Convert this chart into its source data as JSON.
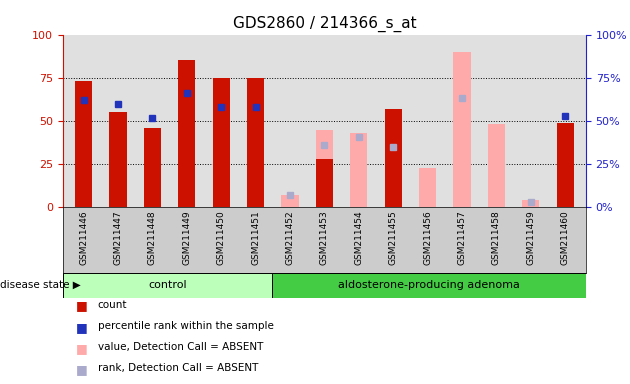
{
  "title": "GDS2860 / 214366_s_at",
  "samples": [
    "GSM211446",
    "GSM211447",
    "GSM211448",
    "GSM211449",
    "GSM211450",
    "GSM211451",
    "GSM211452",
    "GSM211453",
    "GSM211454",
    "GSM211455",
    "GSM211456",
    "GSM211457",
    "GSM211458",
    "GSM211459",
    "GSM211460"
  ],
  "red_bars": [
    73,
    55,
    46,
    85,
    75,
    75,
    0,
    28,
    0,
    57,
    0,
    0,
    0,
    0,
    49
  ],
  "blue_dots": [
    62,
    60,
    52,
    66,
    58,
    58,
    null,
    null,
    null,
    null,
    null,
    null,
    null,
    null,
    53
  ],
  "pink_bars": [
    0,
    0,
    0,
    0,
    0,
    0,
    7,
    45,
    43,
    0,
    23,
    90,
    48,
    4,
    0
  ],
  "lavender_dots": [
    null,
    null,
    null,
    null,
    null,
    null,
    7,
    36,
    41,
    35,
    null,
    63,
    null,
    3,
    null
  ],
  "control_count": 6,
  "adenoma_count": 9,
  "ylim": [
    0,
    100
  ],
  "yticks": [
    0,
    25,
    50,
    75,
    100
  ],
  "disease_label_left": "control",
  "disease_label_right": "aldosterone-producing adenoma",
  "red_color": "#cc1100",
  "blue_color": "#2233bb",
  "pink_color": "#ffaaaa",
  "lavender_color": "#aaaacc",
  "bg_plot": "#e0e0e0",
  "bg_ctrl": "#bbffbb",
  "bg_adeno": "#44cc44",
  "left_axis_color": "#cc1100",
  "right_axis_color": "#2222cc",
  "bar_width": 0.5,
  "legend_labels": [
    "count",
    "percentile rank within the sample",
    "value, Detection Call = ABSENT",
    "rank, Detection Call = ABSENT"
  ],
  "legend_colors": [
    "#cc1100",
    "#2233bb",
    "#ffaaaa",
    "#aaaacc"
  ]
}
